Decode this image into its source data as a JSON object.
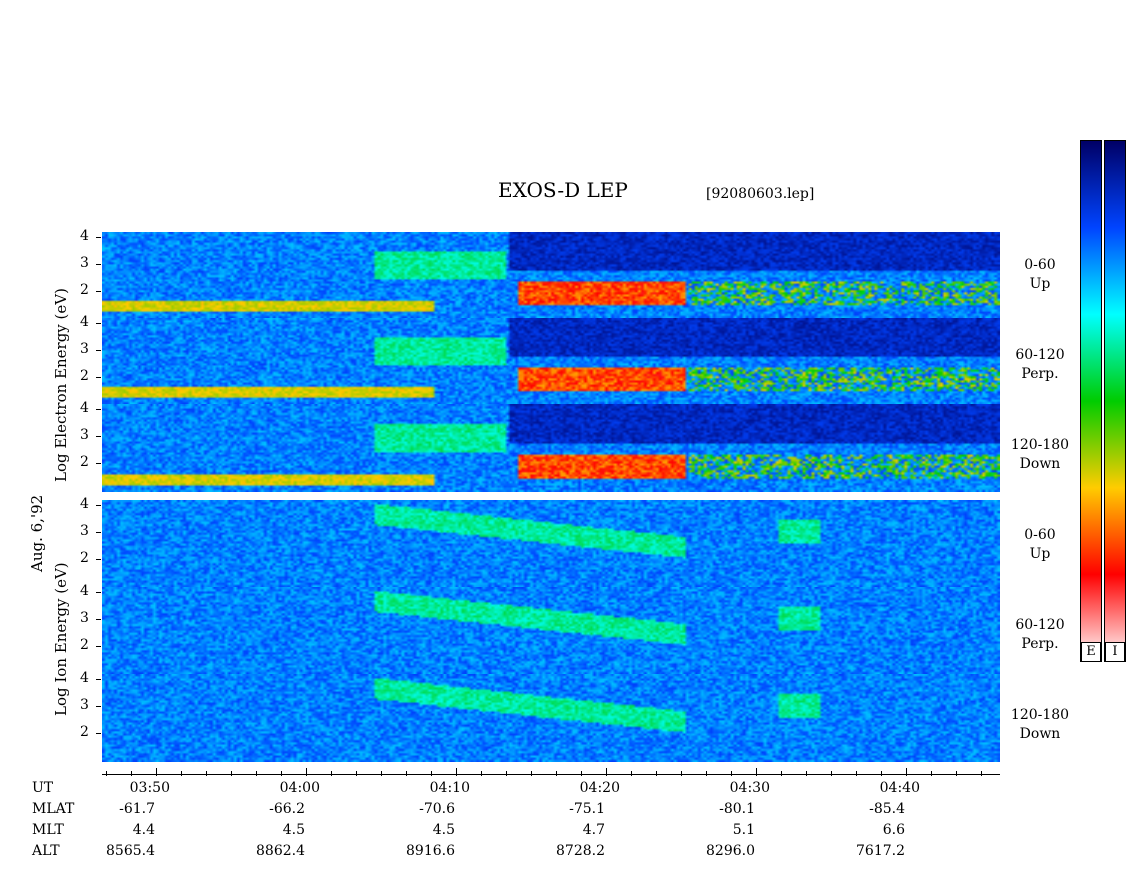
{
  "title": "EXOS-D LEP",
  "file_label": "[92080603.lep]",
  "side_labels": {
    "date": "Aug. 6,'92",
    "electron": "Log   Electron   Energy  (eV)",
    "ion": "Log     Ion     Energy  (eV)"
  },
  "panels": [
    {
      "species": "electron",
      "pitch": "0-60",
      "dir": "Up"
    },
    {
      "species": "electron",
      "pitch": "60-120",
      "dir": "Perp."
    },
    {
      "species": "electron",
      "pitch": "120-180",
      "dir": "Down"
    },
    {
      "species": "ion",
      "pitch": "0-60",
      "dir": "Up"
    },
    {
      "species": "ion",
      "pitch": "60-120",
      "dir": "Perp."
    },
    {
      "species": "ion",
      "pitch": "120-180",
      "dir": "Down"
    }
  ],
  "yticks_electron": [
    "4",
    "3",
    "2"
  ],
  "yticks_ion_top": [
    "4",
    "3",
    "2"
  ],
  "yticks_ion_bottom": [
    "4",
    "3",
    "2"
  ],
  "axis_table": {
    "row_labels": [
      "UT",
      "MLAT",
      "MLT",
      "ALT"
    ],
    "columns": [
      {
        "ut": "03:50",
        "mlat": "-61.7",
        "mlt": "4.4",
        "alt": "8565.4"
      },
      {
        "ut": "04:00",
        "mlat": "-66.2",
        "mlt": "4.5",
        "alt": "8862.4"
      },
      {
        "ut": "04:10",
        "mlat": "-70.6",
        "mlt": "4.5",
        "alt": "8916.6"
      },
      {
        "ut": "04:20",
        "mlat": "-75.1",
        "mlt": "4.7",
        "alt": "8728.2"
      },
      {
        "ut": "04:30",
        "mlat": "-80.1",
        "mlt": "5.1",
        "alt": "8296.0"
      },
      {
        "ut": "04:40",
        "mlat": "-85.4",
        "mlt": "6.6",
        "alt": "7617.2"
      }
    ]
  },
  "colorbars": [
    {
      "label": "E"
    },
    {
      "label": "I"
    }
  ],
  "chart_data": {
    "type": "heatmap",
    "title": "EXOS-D LEP",
    "xlabel": "UT",
    "x_ticks": [
      "03:50",
      "04:00",
      "04:10",
      "04:20",
      "04:30",
      "04:40"
    ],
    "x_range": [
      "03:45",
      "04:46"
    ],
    "ylabel": "Log Energy (eV)",
    "ylim": [
      1,
      4.2
    ],
    "y_ticks": [
      2,
      3,
      4
    ],
    "colormap": [
      "#ffffff",
      "#ff0000",
      "#ffcc00",
      "#00cc00",
      "#00ffff",
      "#0044ff",
      "#000066"
    ],
    "series": [
      {
        "name": "0-60 Up"
      },
      {
        "name": "60-120 Perp."
      },
      {
        "name": "120-180 Down"
      },
      {
        "name": "0-60 Up"
      },
      {
        "name": "60-120 Perp."
      },
      {
        "name": "120-180 Down"
      }
    ]
  }
}
